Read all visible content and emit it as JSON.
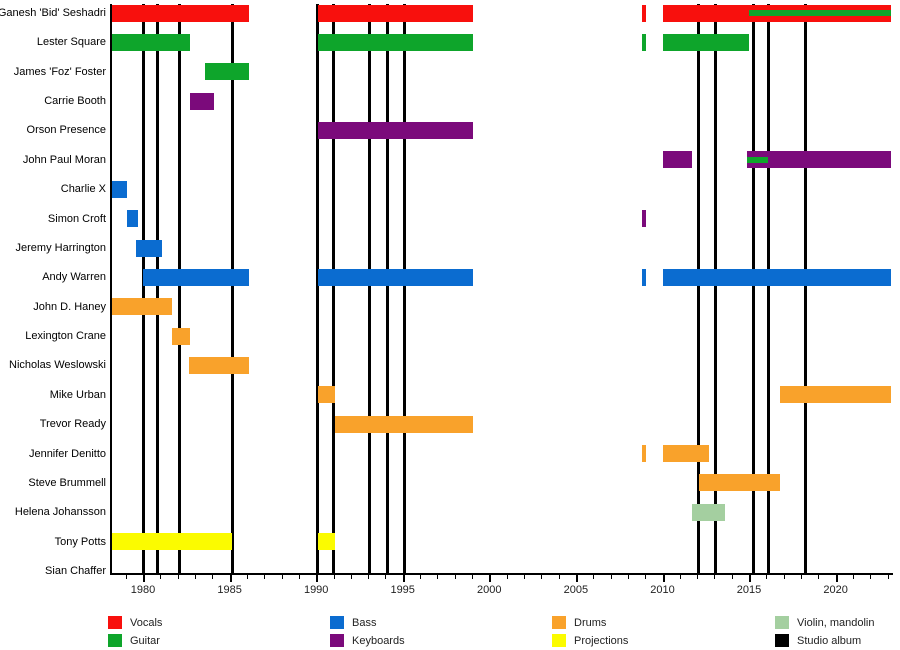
{
  "chart_data": {
    "type": "bar",
    "subtype": "membership-timeline-gantt",
    "title": "",
    "axis": {
      "start": 1978.15,
      "end": 2023.2,
      "major_ticks": [
        1980,
        1985,
        1990,
        1995,
        2000,
        2005,
        2010,
        2015,
        2020
      ],
      "minor_tick_start": 1979,
      "minor_tick_end": 2023,
      "minor_tick_step": 1
    },
    "roles": {
      "vocals": {
        "label": "Vocals",
        "color": "#f8100d"
      },
      "guitar": {
        "label": "Guitar",
        "color": "#0ea52b"
      },
      "bass": {
        "label": "Bass",
        "color": "#0b6cd0"
      },
      "keyboards": {
        "label": "Keyboards",
        "color": "#7b0a7b"
      },
      "drums": {
        "label": "Drums",
        "color": "#f9a22b"
      },
      "projections": {
        "label": "Projections",
        "color": "#fbfb00"
      },
      "violin": {
        "label": "Violin, mandolin",
        "color": "#a4cfa0"
      },
      "album": {
        "label": "Studio album",
        "color": "#000000"
      }
    },
    "legend_columns": [
      [
        "vocals",
        "guitar"
      ],
      [
        "bass",
        "keyboards"
      ],
      [
        "drums",
        "projections"
      ],
      [
        "violin",
        "album"
      ]
    ],
    "album_release_years": [
      1980.0,
      1980.85,
      1982.1,
      1985.15,
      1990.1,
      1991.0,
      1993.05,
      1994.1,
      1995.1,
      2012.1,
      2013.05,
      2015.25,
      2016.1,
      2018.25
    ],
    "members": [
      {
        "name": "Ganesh 'Bid' Seshadri",
        "segments": [
          {
            "s": 1978.2,
            "e": 1986.1,
            "role": "vocals"
          },
          {
            "s": 1990.1,
            "e": 1999.05,
            "role": "vocals"
          },
          {
            "s": 2008.8,
            "e": 2009.05,
            "role": "vocals"
          },
          {
            "s": 2010.0,
            "e": 2023.2,
            "role": "vocals"
          },
          {
            "s": 2015.0,
            "e": 2023.2,
            "role": "guitar",
            "stripe": true
          }
        ]
      },
      {
        "name": "Lester Square",
        "segments": [
          {
            "s": 1978.2,
            "e": 1982.7,
            "role": "guitar"
          },
          {
            "s": 1990.1,
            "e": 1999.05,
            "role": "guitar"
          },
          {
            "s": 2008.8,
            "e": 2009.05,
            "role": "guitar"
          },
          {
            "s": 2010.0,
            "e": 2015.0,
            "role": "guitar"
          }
        ]
      },
      {
        "name": "James 'Foz' Foster",
        "segments": [
          {
            "s": 1983.6,
            "e": 1986.1,
            "role": "guitar"
          }
        ]
      },
      {
        "name": "Carrie Booth",
        "segments": [
          {
            "s": 1982.7,
            "e": 1984.1,
            "role": "keyboards"
          }
        ]
      },
      {
        "name": "Orson Presence",
        "segments": [
          {
            "s": 1990.1,
            "e": 1999.05,
            "role": "keyboards"
          }
        ]
      },
      {
        "name": "John Paul Moran",
        "segments": [
          {
            "s": 2010.0,
            "e": 2011.7,
            "role": "keyboards"
          },
          {
            "s": 2014.9,
            "e": 2023.2,
            "role": "keyboards"
          },
          {
            "s": 2014.9,
            "e": 2016.1,
            "role": "guitar",
            "stripe": true
          }
        ]
      },
      {
        "name": "Charlie X",
        "segments": [
          {
            "s": 1978.2,
            "e": 1979.1,
            "role": "bass"
          }
        ]
      },
      {
        "name": "Simon Croft",
        "segments": [
          {
            "s": 1979.05,
            "e": 1979.7,
            "role": "bass"
          },
          {
            "s": 2008.8,
            "e": 2009.05,
            "role": "keyboards"
          }
        ]
      },
      {
        "name": "Jeremy Harrington",
        "segments": [
          {
            "s": 1979.6,
            "e": 1981.1,
            "role": "bass"
          }
        ]
      },
      {
        "name": "Andy Warren",
        "segments": [
          {
            "s": 1980.0,
            "e": 1986.1,
            "role": "bass"
          },
          {
            "s": 1990.1,
            "e": 1999.05,
            "role": "bass"
          },
          {
            "s": 2008.8,
            "e": 2009.05,
            "role": "bass"
          },
          {
            "s": 2010.0,
            "e": 2023.2,
            "role": "bass"
          }
        ]
      },
      {
        "name": "John D. Haney",
        "segments": [
          {
            "s": 1978.2,
            "e": 1981.7,
            "role": "drums"
          }
        ]
      },
      {
        "name": "Lexington Crane",
        "segments": [
          {
            "s": 1981.65,
            "e": 1982.7,
            "role": "drums"
          }
        ]
      },
      {
        "name": "Nicholas Weslowski",
        "segments": [
          {
            "s": 1982.65,
            "e": 1986.1,
            "role": "drums"
          }
        ]
      },
      {
        "name": "Mike Urban",
        "segments": [
          {
            "s": 1990.1,
            "e": 1991.1,
            "role": "drums"
          },
          {
            "s": 2016.8,
            "e": 2023.2,
            "role": "drums"
          }
        ]
      },
      {
        "name": "Trevor Ready",
        "segments": [
          {
            "s": 1991.1,
            "e": 1999.05,
            "role": "drums"
          }
        ]
      },
      {
        "name": "Jennifer Denitto",
        "segments": [
          {
            "s": 2008.8,
            "e": 2009.05,
            "role": "drums"
          },
          {
            "s": 2010.05,
            "e": 2012.7,
            "role": "drums"
          }
        ]
      },
      {
        "name": "Steve Brummell",
        "segments": [
          {
            "s": 2012.1,
            "e": 2016.8,
            "role": "drums"
          }
        ]
      },
      {
        "name": "Helena Johansson",
        "segments": [
          {
            "s": 2011.7,
            "e": 2013.6,
            "role": "violin"
          }
        ]
      },
      {
        "name": "Tony Potts",
        "segments": [
          {
            "s": 1978.2,
            "e": 1985.15,
            "role": "projections"
          },
          {
            "s": 1990.1,
            "e": 1991.1,
            "role": "projections"
          }
        ]
      },
      {
        "name": "Sian Chaffer",
        "segments": []
      }
    ]
  }
}
